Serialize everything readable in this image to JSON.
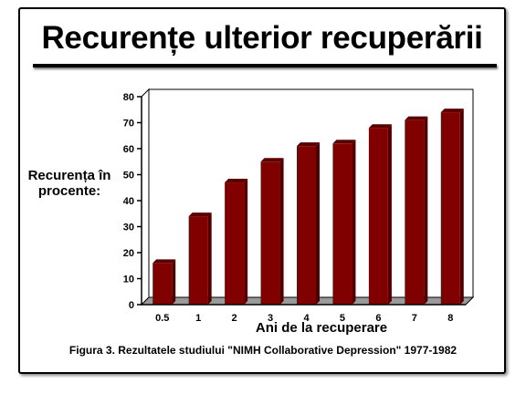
{
  "slide": {
    "title": "Recurențe ulterior recuperării",
    "caption": "Figura 3. Rezultatele studiului \"NIMH Collaborative Depression\" 1977-1982"
  },
  "chart_data": {
    "type": "bar",
    "title": "",
    "categories": [
      "0.5",
      "1",
      "2",
      "3",
      "4",
      "5",
      "6",
      "7",
      "8"
    ],
    "values": [
      16,
      34,
      47,
      55,
      61,
      62,
      68,
      71,
      74
    ],
    "ylabel": "Recurența în procente:",
    "xlabel": "Ani de la recuperare",
    "ylim": [
      0,
      80
    ],
    "yticks": [
      0,
      10,
      20,
      30,
      40,
      50,
      60,
      70,
      80
    ],
    "grid": false,
    "legend": "none",
    "colors": {
      "bar": "#800000",
      "bar_side": "#4a0000",
      "floor": "#9a9a9a",
      "plot_background": "#ffffff"
    }
  }
}
